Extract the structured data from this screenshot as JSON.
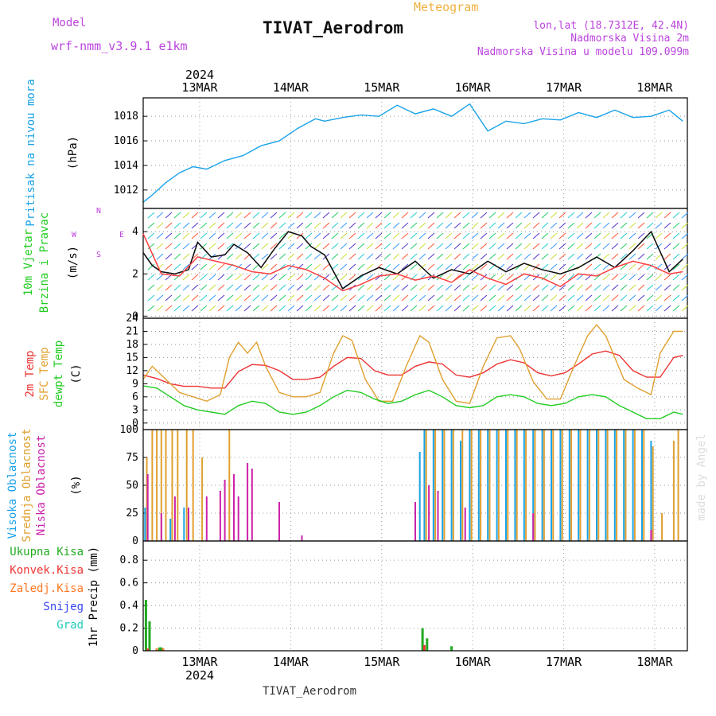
{
  "header": {
    "model_label": "Model",
    "model_name": "wrf-nmm_v3.9.1  e1km",
    "meteogram_label": "Meteogram",
    "station_title": "TIVAT_Aerodrom",
    "coords": "lon,lat (18.7312E, 42.4N)",
    "elev_line": "Nadmorska Visina 2m",
    "model_elev_line": "Nadmorska Visina u modelu 109.099m",
    "credit": "made by Angel"
  },
  "time_axis": {
    "year": "2024",
    "dates": [
      "13MAR",
      "14MAR",
      "15MAR",
      "16MAR",
      "17MAR",
      "18MAR"
    ]
  },
  "footer": {
    "station": "TIVAT_Aerodrom"
  },
  "colors": {
    "pressure": "#1aa3e8",
    "temp2m": "#ee3333",
    "sfc_temp": "#e0a030",
    "dewpt": "#22cc22",
    "cloud_high": "#1aa3e8",
    "cloud_mid": "#e0a030",
    "cloud_low": "#cc22aa",
    "precip_total": "#22aa22",
    "precip_conv": "#ee3333",
    "precip_frozen": "#ff7722",
    "snow": "#3344ee",
    "graupel": "#22ccbb",
    "wind_black": "#111111",
    "wind_red": "#ff4444",
    "model_text": "#bb44dd",
    "meteogram_text": "#f0b040"
  },
  "chart_data": [
    {
      "type": "line",
      "panel": "pressure",
      "ylabel": "Pritisak na nivou mora",
      "unit": "(hPa)",
      "yticks": [
        1012,
        1014,
        1016,
        1018
      ],
      "ylim": [
        1010.5,
        1019.5
      ],
      "xlim": [
        0,
        6
      ],
      "series": [
        {
          "color_key": "pressure",
          "x": [
            0,
            0.1,
            0.25,
            0.4,
            0.55,
            0.7,
            0.9,
            1.1,
            1.3,
            1.5,
            1.7,
            1.9,
            2.0,
            2.2,
            2.4,
            2.6,
            2.8,
            3.0,
            3.2,
            3.4,
            3.6,
            3.8,
            4.0,
            4.2,
            4.4,
            4.6,
            4.8,
            5.0,
            5.2,
            5.4,
            5.6,
            5.8,
            5.95
          ],
          "y": [
            1011.0,
            1011.6,
            1012.6,
            1013.4,
            1013.9,
            1013.7,
            1014.4,
            1014.8,
            1015.6,
            1016.0,
            1017.0,
            1017.8,
            1017.6,
            1017.9,
            1018.1,
            1018.0,
            1018.9,
            1018.2,
            1018.6,
            1018.0,
            1019.0,
            1016.8,
            1017.6,
            1017.4,
            1017.8,
            1017.7,
            1018.3,
            1017.9,
            1018.5,
            1017.9,
            1018.0,
            1018.5,
            1017.6
          ]
        }
      ]
    },
    {
      "type": "line",
      "panel": "wind",
      "ylabel": "10m Vjetar Brzina i Pravac",
      "unit": "(m/s)",
      "compass": {
        "n": "N",
        "s": "S",
        "e": "E",
        "w": "W"
      },
      "yticks": [
        0,
        2,
        4
      ],
      "ylim": [
        -0.1,
        5.1
      ],
      "xlim": [
        0,
        6
      ],
      "series": [
        {
          "color_key": "wind_black",
          "x": [
            0,
            0.1,
            0.2,
            0.35,
            0.5,
            0.6,
            0.75,
            0.9,
            1.0,
            1.15,
            1.3,
            1.45,
            1.6,
            1.75,
            1.85,
            2.0,
            2.2,
            2.4,
            2.6,
            2.8,
            3.0,
            3.2,
            3.4,
            3.6,
            3.8,
            4.0,
            4.2,
            4.4,
            4.6,
            4.8,
            5.0,
            5.2,
            5.4,
            5.6,
            5.8,
            5.95
          ],
          "y": [
            3.0,
            2.4,
            2.1,
            2.0,
            2.2,
            3.5,
            2.8,
            2.9,
            3.4,
            3.0,
            2.3,
            3.2,
            4.0,
            3.8,
            3.3,
            2.9,
            1.3,
            1.9,
            2.3,
            2.0,
            2.6,
            1.8,
            2.2,
            2.0,
            2.6,
            2.1,
            2.5,
            2.2,
            2.0,
            2.3,
            2.8,
            2.3,
            3.1,
            4.0,
            2.1,
            2.7
          ]
        },
        {
          "color_key": "wind_red",
          "x": [
            0,
            0.2,
            0.4,
            0.6,
            0.8,
            1.0,
            1.2,
            1.4,
            1.6,
            1.8,
            2.0,
            2.2,
            2.4,
            2.6,
            2.8,
            3.0,
            3.2,
            3.4,
            3.6,
            3.8,
            4.0,
            4.2,
            4.4,
            4.6,
            4.8,
            5.0,
            5.2,
            5.4,
            5.6,
            5.8,
            5.95
          ],
          "y": [
            3.9,
            2.0,
            1.9,
            2.8,
            2.6,
            2.4,
            2.1,
            2.0,
            2.4,
            2.2,
            1.8,
            1.2,
            1.5,
            1.9,
            2.0,
            1.7,
            1.9,
            1.6,
            2.2,
            1.8,
            1.5,
            2.0,
            1.8,
            1.4,
            2.0,
            1.9,
            2.3,
            2.6,
            2.4,
            2.0,
            2.1
          ]
        }
      ]
    },
    {
      "type": "line",
      "panel": "temperature",
      "ylabel_lines": [
        "2m Temp",
        "SFC Temp",
        "dewpt Temp"
      ],
      "unit": "(C)",
      "yticks": [
        0,
        3,
        6,
        9,
        12,
        15,
        18,
        21,
        24
      ],
      "ylim": [
        -1.5,
        24
      ],
      "xlim": [
        0,
        6
      ],
      "series": [
        {
          "name": "2m Temp",
          "color_key": "temp2m",
          "x": [
            0,
            0.15,
            0.3,
            0.45,
            0.6,
            0.75,
            0.9,
            1.05,
            1.2,
            1.35,
            1.5,
            1.65,
            1.8,
            1.95,
            2.1,
            2.25,
            2.4,
            2.55,
            2.7,
            2.85,
            3.0,
            3.15,
            3.3,
            3.45,
            3.6,
            3.75,
            3.9,
            4.05,
            4.2,
            4.35,
            4.5,
            4.65,
            4.8,
            4.95,
            5.1,
            5.25,
            5.4,
            5.55,
            5.7,
            5.85,
            5.95
          ],
          "y": [
            11.0,
            10.2,
            9.0,
            8.4,
            8.4,
            8.0,
            8.0,
            11.8,
            13.4,
            13.2,
            12.0,
            10.0,
            10.0,
            10.5,
            13.0,
            15.0,
            14.8,
            12.0,
            11.0,
            11.0,
            13.0,
            14.0,
            13.5,
            11.0,
            10.5,
            11.5,
            13.5,
            14.5,
            13.8,
            11.5,
            10.8,
            11.5,
            13.5,
            15.8,
            16.5,
            15.5,
            12.0,
            10.5,
            10.5,
            15.0,
            15.5
          ]
        },
        {
          "name": "SFC Temp",
          "color_key": "sfc_temp",
          "x": [
            0,
            0.1,
            0.25,
            0.4,
            0.55,
            0.7,
            0.85,
            0.95,
            1.05,
            1.15,
            1.25,
            1.35,
            1.5,
            1.65,
            1.8,
            1.95,
            2.1,
            2.2,
            2.3,
            2.45,
            2.6,
            2.75,
            2.9,
            3.05,
            3.15,
            3.3,
            3.45,
            3.6,
            3.75,
            3.9,
            4.05,
            4.15,
            4.3,
            4.45,
            4.6,
            4.75,
            4.9,
            5.0,
            5.1,
            5.3,
            5.45,
            5.6,
            5.7,
            5.85,
            5.95
          ],
          "y": [
            10.0,
            13.0,
            10.0,
            7.0,
            6.0,
            5.0,
            6.5,
            15.0,
            18.5,
            16.0,
            18.5,
            13.0,
            7.0,
            6.0,
            6.0,
            7.0,
            16.0,
            20.0,
            19.0,
            10.0,
            5.0,
            5.0,
            13.0,
            20.0,
            18.5,
            10.0,
            5.0,
            4.5,
            13.0,
            19.5,
            20.0,
            17.0,
            9.5,
            5.5,
            5.5,
            13.0,
            20.0,
            22.5,
            20.0,
            10.0,
            8.0,
            6.5,
            16.0,
            21.0,
            21.0
          ]
        },
        {
          "name": "dewpt Temp",
          "color_key": "dewpt",
          "x": [
            0,
            0.15,
            0.3,
            0.45,
            0.6,
            0.75,
            0.9,
            1.05,
            1.2,
            1.35,
            1.5,
            1.65,
            1.8,
            1.95,
            2.1,
            2.25,
            2.4,
            2.55,
            2.7,
            2.85,
            3.0,
            3.15,
            3.3,
            3.45,
            3.6,
            3.75,
            3.9,
            4.05,
            4.2,
            4.35,
            4.5,
            4.65,
            4.8,
            4.95,
            5.1,
            5.25,
            5.4,
            5.55,
            5.7,
            5.85,
            5.95
          ],
          "y": [
            8.5,
            8.0,
            6.0,
            4.0,
            3.0,
            2.5,
            2.0,
            4.0,
            5.0,
            4.5,
            2.5,
            2.0,
            2.5,
            4.0,
            6.0,
            7.5,
            7.0,
            5.5,
            4.5,
            5.0,
            6.5,
            7.5,
            6.0,
            4.0,
            3.5,
            4.0,
            6.0,
            6.5,
            6.0,
            4.5,
            4.0,
            4.5,
            6.0,
            6.5,
            6.0,
            4.0,
            2.5,
            1.0,
            1.0,
            2.5,
            2.0
          ]
        }
      ]
    },
    {
      "type": "bar",
      "panel": "cloud",
      "ylabel_lines": [
        "Visoka Oblacnost",
        "Srednja Oblacnost",
        "Niska Oblacnost"
      ],
      "unit": "(%)",
      "yticks": [
        0,
        25,
        50,
        75,
        100
      ],
      "ylim": [
        0,
        100
      ],
      "xlim": [
        0,
        6
      ],
      "series": [
        {
          "name": "Visoka Oblacnost",
          "color_key": "cloud_high",
          "x": [
            0.02,
            0.3,
            0.45,
            3.05,
            3.1,
            3.2,
            3.3,
            3.4,
            3.5,
            3.6,
            3.7,
            3.8,
            3.9,
            4.0,
            4.1,
            4.2,
            4.3,
            4.4,
            4.5,
            4.6,
            4.7,
            4.8,
            4.9,
            5.0,
            5.1,
            5.2,
            5.3,
            5.4,
            5.5,
            5.6
          ],
          "y": [
            30,
            20,
            30,
            80,
            100,
            100,
            100,
            100,
            90,
            100,
            100,
            100,
            100,
            100,
            100,
            100,
            100,
            100,
            100,
            100,
            100,
            100,
            100,
            100,
            100,
            100,
            100,
            100,
            100,
            90
          ]
        },
        {
          "name": "Srednja Oblacnost",
          "color_key": "cloud_mid",
          "x": [
            0.04,
            0.1,
            0.15,
            0.2,
            0.25,
            0.32,
            0.38,
            0.48,
            0.55,
            0.65,
            0.95,
            3.12,
            3.22,
            3.32,
            3.42,
            3.52,
            3.62,
            3.72,
            3.82,
            3.92,
            4.02,
            4.12,
            4.22,
            4.32,
            4.42,
            4.52,
            4.62,
            4.72,
            4.82,
            4.92,
            5.02,
            5.12,
            5.22,
            5.32,
            5.42,
            5.52,
            5.62,
            5.72,
            5.85,
            5.9
          ],
          "y": [
            75,
            100,
            100,
            100,
            100,
            100,
            100,
            100,
            100,
            75,
            100,
            100,
            100,
            100,
            100,
            100,
            100,
            100,
            100,
            100,
            100,
            100,
            100,
            100,
            100,
            100,
            100,
            100,
            100,
            100,
            100,
            100,
            100,
            100,
            100,
            100,
            85,
            25,
            90,
            100
          ]
        },
        {
          "name": "Niska Oblacnost",
          "color_key": "cloud_low",
          "x": [
            0.05,
            0.2,
            0.35,
            0.5,
            0.7,
            0.85,
            0.9,
            1.0,
            1.05,
            1.15,
            1.2,
            1.5,
            1.75,
            3.0,
            3.15,
            3.25,
            3.55,
            4.3,
            5.6
          ],
          "y": [
            60,
            25,
            40,
            30,
            40,
            45,
            55,
            60,
            40,
            70,
            65,
            35,
            5,
            35,
            50,
            45,
            30,
            25,
            10
          ]
        }
      ]
    },
    {
      "type": "bar",
      "panel": "precip",
      "legend": [
        "Ukupna Kisa",
        "Konvek.Kisa",
        "Zaledj.Kisa",
        "Snijeg",
        "Grad"
      ],
      "ylabel": "1hr Precip (mm)",
      "yticks": [
        0,
        0.2,
        0.4,
        0.6,
        0.8
      ],
      "ylim": [
        0,
        0.97
      ],
      "xlim": [
        0,
        6
      ],
      "series": [
        {
          "name": "Ukupna Kisa",
          "color_key": "precip_total",
          "x": [
            0.03,
            0.07,
            0.18,
            0.2,
            3.08,
            3.13,
            3.4
          ],
          "y": [
            0.45,
            0.26,
            0.03,
            0.03,
            0.2,
            0.11,
            0.04
          ]
        },
        {
          "name": "Konvek.Kisa",
          "color_key": "precip_conv",
          "x": [
            0.05,
            3.1
          ],
          "y": [
            0.02,
            0.05
          ]
        },
        {
          "name": "Zaledj.Kisa",
          "color_key": "precip_frozen",
          "x": [
            0.15,
            0.22
          ],
          "y": [
            0.02,
            0.02
          ]
        }
      ]
    }
  ]
}
